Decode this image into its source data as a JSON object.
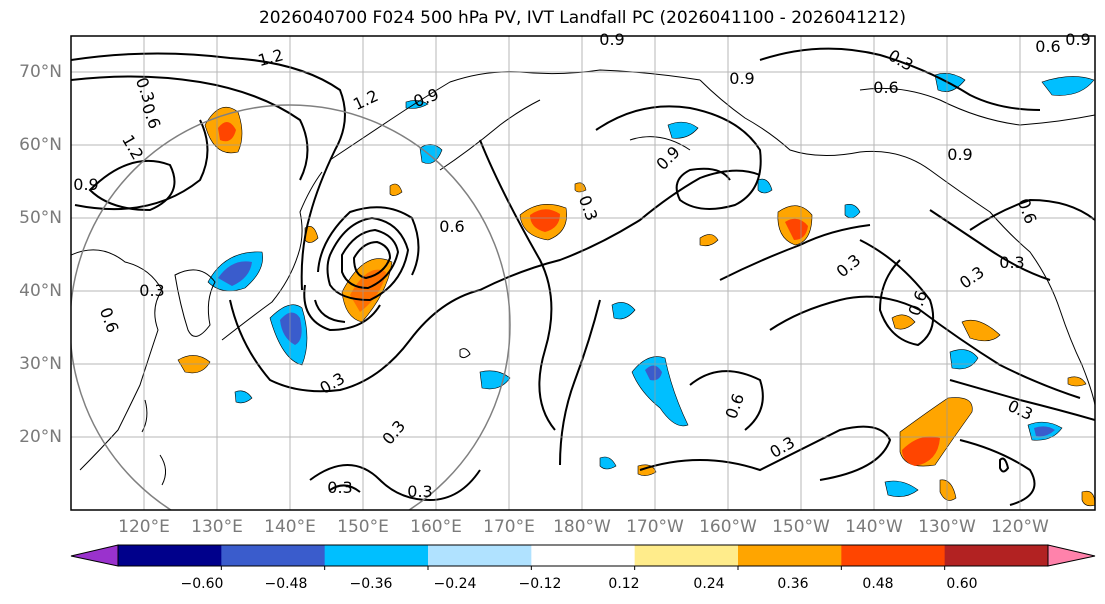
{
  "title": "2026040700 F024 500 hPa PV, IVT Landfall PC (2026041100 - 2026041212)",
  "lat_labels": [
    "70°N",
    "60°N",
    "50°N",
    "40°N",
    "30°N",
    "20°N"
  ],
  "lon_labels": [
    "120°E",
    "130°E",
    "140°E",
    "150°E",
    "160°E",
    "170°E",
    "180°W",
    "170°W",
    "160°W",
    "150°W",
    "140°W",
    "130°W",
    "120°W"
  ],
  "colorbar": {
    "ticks": [
      "−0.60",
      "−0.48",
      "−0.36",
      "−0.24",
      "−0.12",
      "0.12",
      "0.24",
      "0.36",
      "0.48",
      "0.60"
    ],
    "colors": [
      "#9a32cd",
      "#00008b",
      "#3a5ccc",
      "#00bfff",
      "#b0e2ff",
      "#ffffff",
      "#ffec8b",
      "#ffa500",
      "#ff4500",
      "#b22222",
      "#ff82ab"
    ]
  },
  "contour_labels": [
    "1.2",
    "0.9",
    "0.6",
    "0.3"
  ],
  "colors": {
    "frame": "#000000",
    "grid": "#999999",
    "circle": "#808080"
  }
}
